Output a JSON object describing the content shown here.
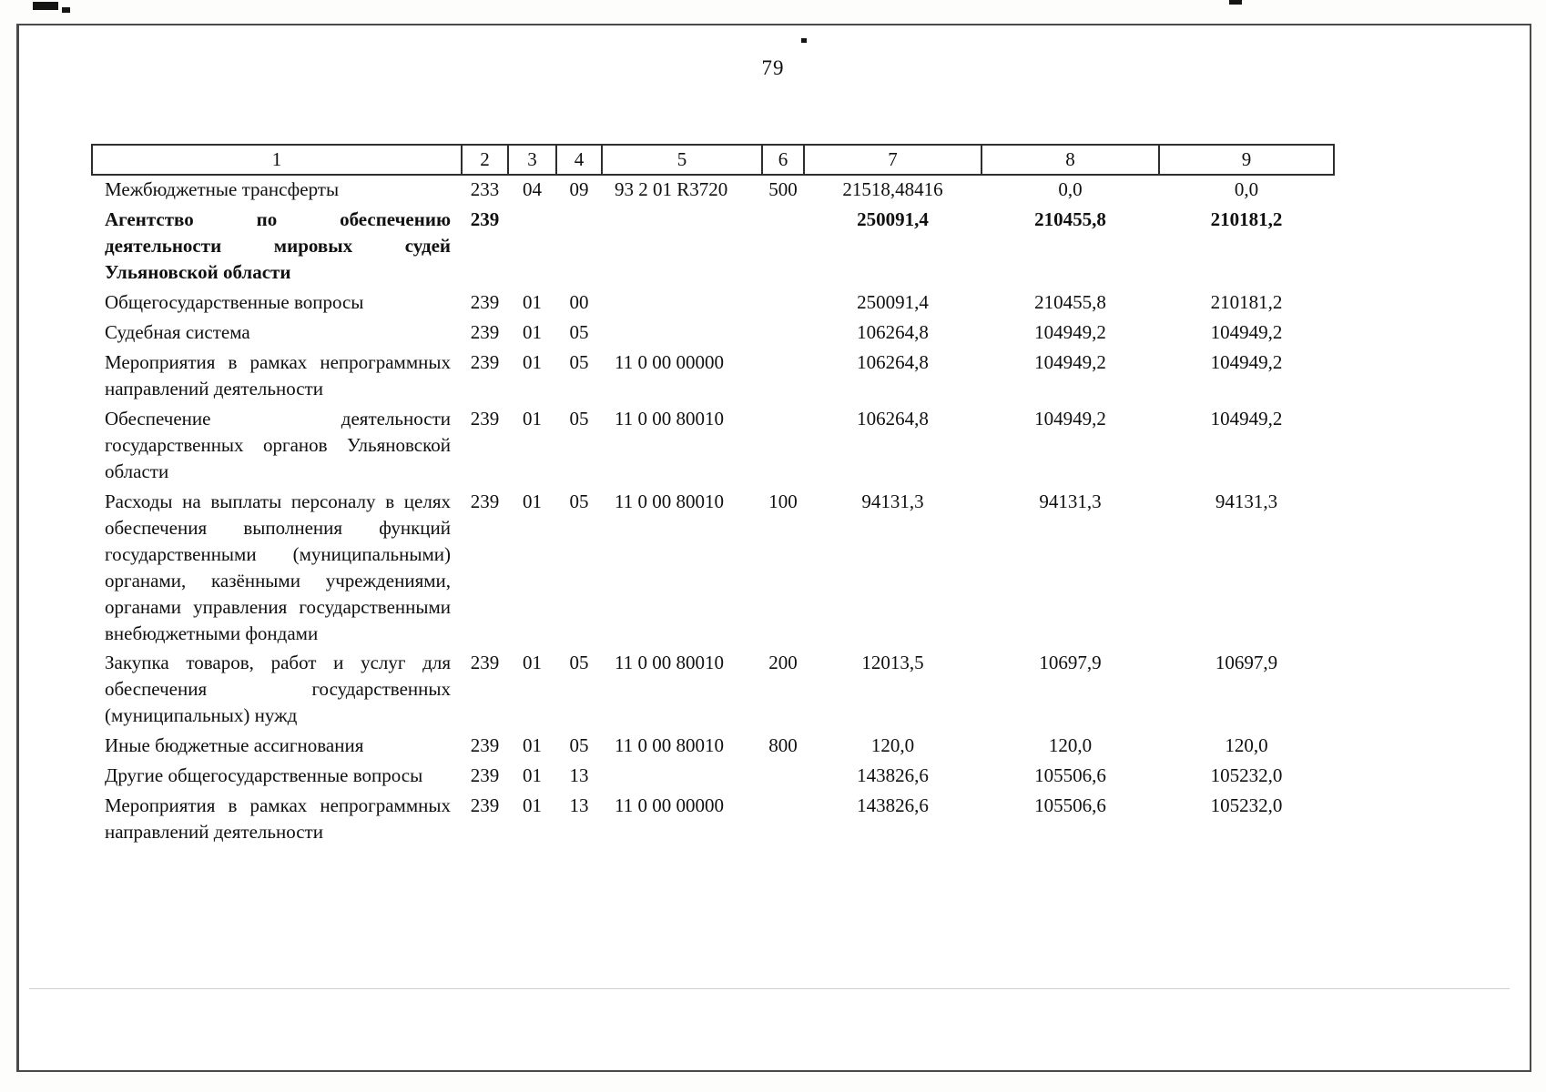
{
  "page": {
    "number": "79"
  },
  "table": {
    "header": [
      "1",
      "2",
      "3",
      "4",
      "5",
      "6",
      "7",
      "8",
      "9"
    ],
    "rows": [
      [
        "Межбюджетные трансферты",
        "233",
        "04",
        "09",
        "93 2 01 R3720",
        "500",
        "21518,48416",
        "0,0",
        "0,0"
      ],
      [
        "Агентство по обеспечению деятельности мировых судей Ульяновской области",
        "239",
        "",
        "",
        "",
        "",
        "250091,4",
        "210455,8",
        "210181,2"
      ],
      [
        "Общегосударственные вопросы",
        "239",
        "01",
        "00",
        "",
        "",
        "250091,4",
        "210455,8",
        "210181,2"
      ],
      [
        "Судебная система",
        "239",
        "01",
        "05",
        "",
        "",
        "106264,8",
        "104949,2",
        "104949,2"
      ],
      [
        "Мероприятия в рамках непрограммных направлений деятельности",
        "239",
        "01",
        "05",
        "11 0 00 00000",
        "",
        "106264,8",
        "104949,2",
        "104949,2"
      ],
      [
        "Обеспечение деятельности государственных органов Ульяновской области",
        "239",
        "01",
        "05",
        "11 0 00 80010",
        "",
        "106264,8",
        "104949,2",
        "104949,2"
      ],
      [
        "Расходы на выплаты персоналу в целях обеспечения выполнения функций государственными (муниципальными) органами, казёнными учреждениями, органами управления государственными внебюджетными фондами",
        "239",
        "01",
        "05",
        "11 0 00 80010",
        "100",
        "94131,3",
        "94131,3",
        "94131,3"
      ],
      [
        "Закупка товаров, работ и услуг для обеспечения государственных (муниципальных) нужд",
        "239",
        "01",
        "05",
        "11 0 00 80010",
        "200",
        "12013,5",
        "10697,9",
        "10697,9"
      ],
      [
        "Иные бюджетные ассигнования",
        "239",
        "01",
        "05",
        "11 0 00 80010",
        "800",
        "120,0",
        "120,0",
        "120,0"
      ],
      [
        "Другие общегосударственные вопросы",
        "239",
        "01",
        "13",
        "",
        "",
        "143826,6",
        "105506,6",
        "105232,0"
      ],
      [
        "Мероприятия в рамках непрограммных направлений деятельности",
        "239",
        "01",
        "13",
        "11 0 00 00000",
        "",
        "143826,6",
        "105506,6",
        "105232,0"
      ]
    ]
  }
}
